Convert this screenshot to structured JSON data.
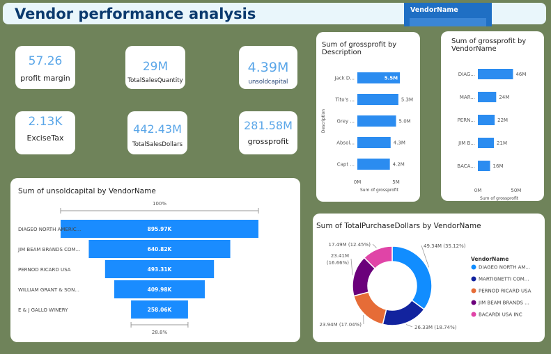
{
  "header": {
    "title": "Vendor performance analysis",
    "slicer_label": "VendorName"
  },
  "kpis": [
    {
      "value": "57.26",
      "label": "profit margin"
    },
    {
      "value": "29M",
      "label": "TotalSalesQuantity"
    },
    {
      "value": "4.39M",
      "label": "unsoldcapital"
    },
    {
      "value": "2.13K",
      "label": "ExciseTax"
    },
    {
      "value": "442.43M",
      "label": "TotalSalesDollars"
    },
    {
      "value": "281.58M",
      "label": "grossprofit"
    }
  ],
  "chart_data": [
    {
      "type": "bar",
      "orientation": "horizontal",
      "title": "Sum of grossprofit by Description",
      "categories": [
        "Jack D...",
        "Tito's ...",
        "Grey ...",
        "Absol...",
        "Capt ..."
      ],
      "values": [
        5.5,
        5.3,
        5.0,
        4.3,
        4.2
      ],
      "data_labels": [
        "5.5M",
        "5.3M",
        "5.0M",
        "4.3M",
        "4.2M"
      ],
      "xlabel": "Sum of grossprofit",
      "ylabel": "Description",
      "xticks": [
        "0M",
        "5M"
      ],
      "xlim": [
        0,
        6.3
      ],
      "color": "#2b8cf0"
    },
    {
      "type": "bar",
      "orientation": "horizontal",
      "title": "Sum of grossprofit by VendorName",
      "categories": [
        "DIAG...",
        "MAR...",
        "PERN...",
        "JIM B...",
        "BACA..."
      ],
      "values": [
        46,
        24,
        22,
        21,
        16
      ],
      "data_labels": [
        "46M",
        "24M",
        "22M",
        "21M",
        "16M"
      ],
      "xlabel": "Sum of grossprofit",
      "xticks": [
        "0M",
        "50M"
      ],
      "xlim": [
        0,
        62
      ],
      "color": "#2b8cf0"
    },
    {
      "type": "funnel",
      "title": "Sum of unsoldcapital by VendorName",
      "categories": [
        "DIAGEO NORTH AMERIC...",
        "JIM BEAM BRANDS COM...",
        "PERNOD RICARD USA",
        "WILLIAM GRANT & SON...",
        "E & J GALLO WINERY"
      ],
      "values": [
        895.97,
        640.82,
        493.31,
        409.98,
        258.06
      ],
      "data_labels": [
        "895.97K",
        "640.82K",
        "493.31K",
        "409.98K",
        "258.06K"
      ],
      "top_percent": "100%",
      "bottom_percent": "28.8%",
      "color": "#1a8cff"
    },
    {
      "type": "pie",
      "donut": true,
      "title": "Sum of TotalPurchaseDollars by VendorName",
      "legend_title": "VendorName",
      "legend_position": "right",
      "slices": [
        {
          "name": "DIAGEO NORTH AM...",
          "value": 49.34,
          "label": "49.34M (35.12%)",
          "color": "#118dff"
        },
        {
          "name": "MARTIGNETTI COM...",
          "value": 26.33,
          "label": "26.33M (18.74%)",
          "color": "#12239e"
        },
        {
          "name": "PERNOD RICARD USA",
          "value": 23.94,
          "label": "23.94M (17.04%)",
          "color": "#e66c37"
        },
        {
          "name": "JIM BEAM BRANDS ...",
          "value": 23.41,
          "label": "23.41M\n(16.66%)",
          "color": "#6b007b"
        },
        {
          "name": "BACARDI USA INC",
          "value": 17.49,
          "label": "17.49M (12.45%)",
          "color": "#e044a7"
        }
      ]
    }
  ]
}
